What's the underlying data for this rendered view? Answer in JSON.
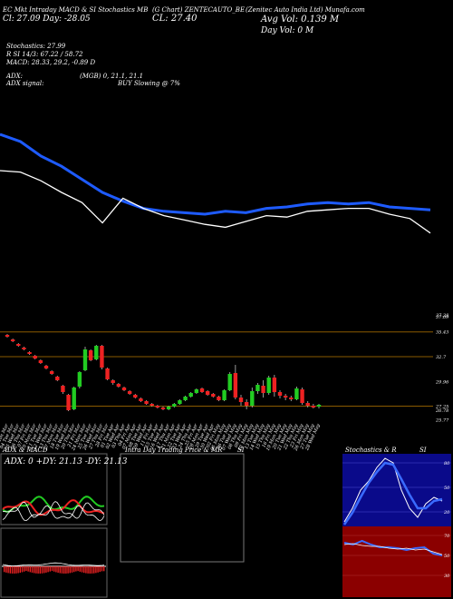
{
  "header": {
    "line1_left": "EC Mkt Intraday MACD & SI Stochastics MB",
    "line1_mid": "(G Chart) ZENTECAUTO_BE",
    "line1_right": "(Zenitec Auto India Ltd) Munafa.com",
    "line2_left": "Cl: 27.09  Day: -28.05",
    "close_label": "CL: 27.40",
    "avg_vol": "Avg Vol: 0.139 M",
    "day_vol": "Day Vol: 0   M",
    "stoch_label": "Stochastics: 27.99",
    "rsi_label": "R  SI 14/3: 67.22 / 58.72",
    "macd_label": "MACD: 28.33, 29.2, -0.89 D",
    "adx_label": "ADX:",
    "adx_value": "(MGB) 0, 21.1, 21.1",
    "adx_signal_label": "ADX signal:",
    "adx_signal_value": "BUY Slowing @ 7%"
  },
  "panels": {
    "adx_title": "ADX  & MACD",
    "adx_readout": "ADX: 0   +DY: 21.13  -DY: 21.13",
    "intra_title": "Intra  Day Trading Price  & MR",
    "intra_si": "SI",
    "stoch_title": "Stochastics & R",
    "stoch_si": "SI"
  },
  "colors": {
    "background": "#000000",
    "ma_line": "#1e5bff",
    "price_line": "#ffffff",
    "candle_up": "#22cc22",
    "candle_down": "#ee2222",
    "level_line": "#8a5a00",
    "stoch_bg": "#0a0a8a",
    "rsi_bg": "#8b0000"
  },
  "chart_data": [
    {
      "type": "line",
      "name": "overview",
      "series": [
        {
          "values": [
            100,
            99.5,
            98.5,
            97.8,
            96.9,
            96.0,
            95.4,
            94.9,
            94.7,
            94.6,
            94.5,
            94.7,
            94.6,
            94.9,
            95.0,
            95.2,
            95.3,
            95.2,
            95.3,
            95.0,
            94.9,
            94.8
          ]
        },
        {
          "values": [
            97.5,
            97.4,
            96.8,
            96.0,
            95.3,
            93.9,
            95.6,
            94.9,
            94.4,
            94.1,
            93.8,
            93.6,
            94.0,
            94.4,
            94.3,
            94.7,
            94.8,
            94.9,
            94.9,
            94.5,
            94.2,
            93.2
          ]
        }
      ]
    },
    {
      "type": "candlestick",
      "name": "price",
      "levels": [
        {
          "value": 37.28,
          "label": "37.28"
        },
        {
          "value": 37.09,
          "label": "37.09"
        },
        {
          "value": 35.43,
          "label": "35.43"
        },
        {
          "value": 32.7,
          "label": "32.7"
        },
        {
          "value": 29.96,
          "label": "29.96"
        },
        {
          "value": 27.25,
          "label": "27.25"
        },
        {
          "value": 26.78,
          "label": "26.78"
        },
        {
          "value": 25.77,
          "label": "25.77"
        }
      ],
      "ylim": [
        25.5,
        37.5
      ],
      "dates": [
        "03 Mon Mar",
        "04 Tue Mar",
        "05 Wed Mar",
        "06 Thu Mar",
        "07 Fri Mar",
        "10 Mon Mar",
        "11 Tue Mar",
        "12 Wed Mar",
        "13 Thu Mar",
        "17 Mon Mar",
        "18 Tue Mar",
        "19 Wed Mar",
        "20 Thu Mar",
        "21 Fri Mar",
        "24 Mon Mar",
        "25 Tue Mar",
        "26 Wed Mar",
        "27 Thu Mar",
        "28 Fri Mar",
        "01 Tue Apr",
        "02 Wed Apr",
        "03 Thu Apr",
        "04 Fri Apr",
        "07 Mon Apr",
        "08 Tue Apr",
        "09 Wed Apr",
        "11 Fri Apr",
        "15 Tue Apr",
        "16 Wed Apr",
        "17 Thu Apr",
        "21 Mon Apr",
        "22 Tue Apr",
        "23 Wed Apr",
        "24 Thu Apr",
        "25 Fri Apr",
        "28 Mon Apr",
        "29 Tue Apr",
        "30 Wed Apr",
        "02 Fri May",
        "05 Mon May",
        "06 Tue May",
        "07 Wed May",
        "08 Thu May",
        "09 Fri May",
        "12 Mon May",
        "13 Tue May",
        "14 Wed May",
        "15 Thu May",
        "16 Fri May",
        "19 Mon May",
        "20 Tue May",
        "21 Wed May",
        "22 Thu May",
        "23 Fri May",
        "26 Mon May",
        "27 Tue May",
        "28 Wed May"
      ],
      "candles": [
        {
          "o": 35.1,
          "c": 34.9,
          "h": 35.2,
          "l": 34.8
        },
        {
          "o": 34.6,
          "c": 34.4,
          "h": 34.7,
          "l": 34.3
        },
        {
          "o": 34.1,
          "c": 33.9,
          "h": 34.2,
          "l": 33.8
        },
        {
          "o": 33.7,
          "c": 33.5,
          "h": 33.8,
          "l": 33.4
        },
        {
          "o": 33.2,
          "c": 33.0,
          "h": 33.3,
          "l": 32.9
        },
        {
          "o": 32.8,
          "c": 32.5,
          "h": 32.9,
          "l": 32.4
        },
        {
          "o": 32.3,
          "c": 32.0,
          "h": 32.4,
          "l": 31.9
        },
        {
          "o": 31.7,
          "c": 31.4,
          "h": 31.8,
          "l": 31.3
        },
        {
          "o": 31.1,
          "c": 30.8,
          "h": 31.2,
          "l": 30.7
        },
        {
          "o": 30.5,
          "c": 30.1,
          "h": 30.6,
          "l": 30.0
        },
        {
          "o": 29.5,
          "c": 28.8,
          "h": 29.6,
          "l": 28.6
        },
        {
          "o": 28.5,
          "c": 26.8,
          "h": 28.6,
          "l": 26.7
        },
        {
          "o": 26.9,
          "c": 29.3,
          "h": 29.4,
          "l": 26.8
        },
        {
          "o": 29.4,
          "c": 31.0,
          "h": 31.1,
          "l": 29.2
        },
        {
          "o": 31.2,
          "c": 33.5,
          "h": 33.8,
          "l": 31.1
        },
        {
          "o": 33.4,
          "c": 32.3,
          "h": 33.5,
          "l": 32.2
        },
        {
          "o": 32.4,
          "c": 33.9,
          "h": 34.0,
          "l": 32.3
        },
        {
          "o": 33.9,
          "c": 31.5,
          "h": 34.0,
          "l": 31.3
        },
        {
          "o": 31.4,
          "c": 30.2,
          "h": 31.5,
          "l": 30.1
        },
        {
          "o": 30.1,
          "c": 29.8,
          "h": 30.2,
          "l": 29.6
        },
        {
          "o": 29.7,
          "c": 29.4,
          "h": 29.8,
          "l": 29.3
        },
        {
          "o": 29.3,
          "c": 29.0,
          "h": 29.4,
          "l": 28.9
        },
        {
          "o": 28.9,
          "c": 28.6,
          "h": 29.0,
          "l": 28.5
        },
        {
          "o": 28.5,
          "c": 28.2,
          "h": 28.6,
          "l": 28.1
        },
        {
          "o": 28.1,
          "c": 27.8,
          "h": 28.2,
          "l": 27.7
        },
        {
          "o": 27.8,
          "c": 27.5,
          "h": 27.9,
          "l": 27.4
        },
        {
          "o": 27.5,
          "c": 27.3,
          "h": 27.6,
          "l": 27.2
        },
        {
          "o": 27.3,
          "c": 27.1,
          "h": 27.4,
          "l": 27.0
        },
        {
          "o": 27.1,
          "c": 26.9,
          "h": 27.2,
          "l": 26.8
        },
        {
          "o": 26.9,
          "c": 27.2,
          "h": 27.3,
          "l": 26.8
        },
        {
          "o": 27.2,
          "c": 27.5,
          "h": 27.6,
          "l": 27.1
        },
        {
          "o": 27.5,
          "c": 27.9,
          "h": 28.0,
          "l": 27.4
        },
        {
          "o": 27.9,
          "c": 28.3,
          "h": 28.4,
          "l": 27.8
        },
        {
          "o": 28.3,
          "c": 28.7,
          "h": 28.8,
          "l": 28.2
        },
        {
          "o": 28.7,
          "c": 29.1,
          "h": 29.2,
          "l": 28.6
        },
        {
          "o": 29.2,
          "c": 28.8,
          "h": 29.3,
          "l": 28.7
        },
        {
          "o": 28.9,
          "c": 28.5,
          "h": 29.0,
          "l": 28.4
        },
        {
          "o": 28.6,
          "c": 28.3,
          "h": 28.7,
          "l": 28.2
        },
        {
          "o": 28.3,
          "c": 27.9,
          "h": 28.4,
          "l": 27.8
        },
        {
          "o": 27.9,
          "c": 29.0,
          "h": 29.1,
          "l": 27.8
        },
        {
          "o": 29.0,
          "c": 30.8,
          "h": 31.0,
          "l": 28.9
        },
        {
          "o": 30.9,
          "c": 28.2,
          "h": 31.8,
          "l": 28.0
        },
        {
          "o": 28.2,
          "c": 27.7,
          "h": 28.5,
          "l": 27.3
        },
        {
          "o": 27.7,
          "c": 27.3,
          "h": 28.0,
          "l": 26.9
        },
        {
          "o": 27.3,
          "c": 28.9,
          "h": 29.3,
          "l": 27.1
        },
        {
          "o": 28.9,
          "c": 29.6,
          "h": 29.8,
          "l": 28.6
        },
        {
          "o": 29.5,
          "c": 28.7,
          "h": 30.1,
          "l": 28.2
        },
        {
          "o": 28.7,
          "c": 30.4,
          "h": 30.6,
          "l": 28.5
        },
        {
          "o": 30.4,
          "c": 28.8,
          "h": 30.7,
          "l": 28.3
        },
        {
          "o": 28.8,
          "c": 28.4,
          "h": 29.0,
          "l": 28.1
        },
        {
          "o": 28.4,
          "c": 28.2,
          "h": 28.6,
          "l": 27.9
        },
        {
          "o": 28.2,
          "c": 28.0,
          "h": 28.4,
          "l": 27.8
        },
        {
          "o": 28.0,
          "c": 29.2,
          "h": 29.4,
          "l": 27.9
        },
        {
          "o": 29.1,
          "c": 27.6,
          "h": 29.3,
          "l": 27.4
        },
        {
          "o": 27.6,
          "c": 27.3,
          "h": 27.8,
          "l": 27.1
        },
        {
          "o": 27.3,
          "c": 27.1,
          "h": 27.5,
          "l": 27.0
        },
        {
          "o": 27.2,
          "c": 27.4,
          "h": 27.5,
          "l": 27.0
        }
      ]
    }
  ]
}
